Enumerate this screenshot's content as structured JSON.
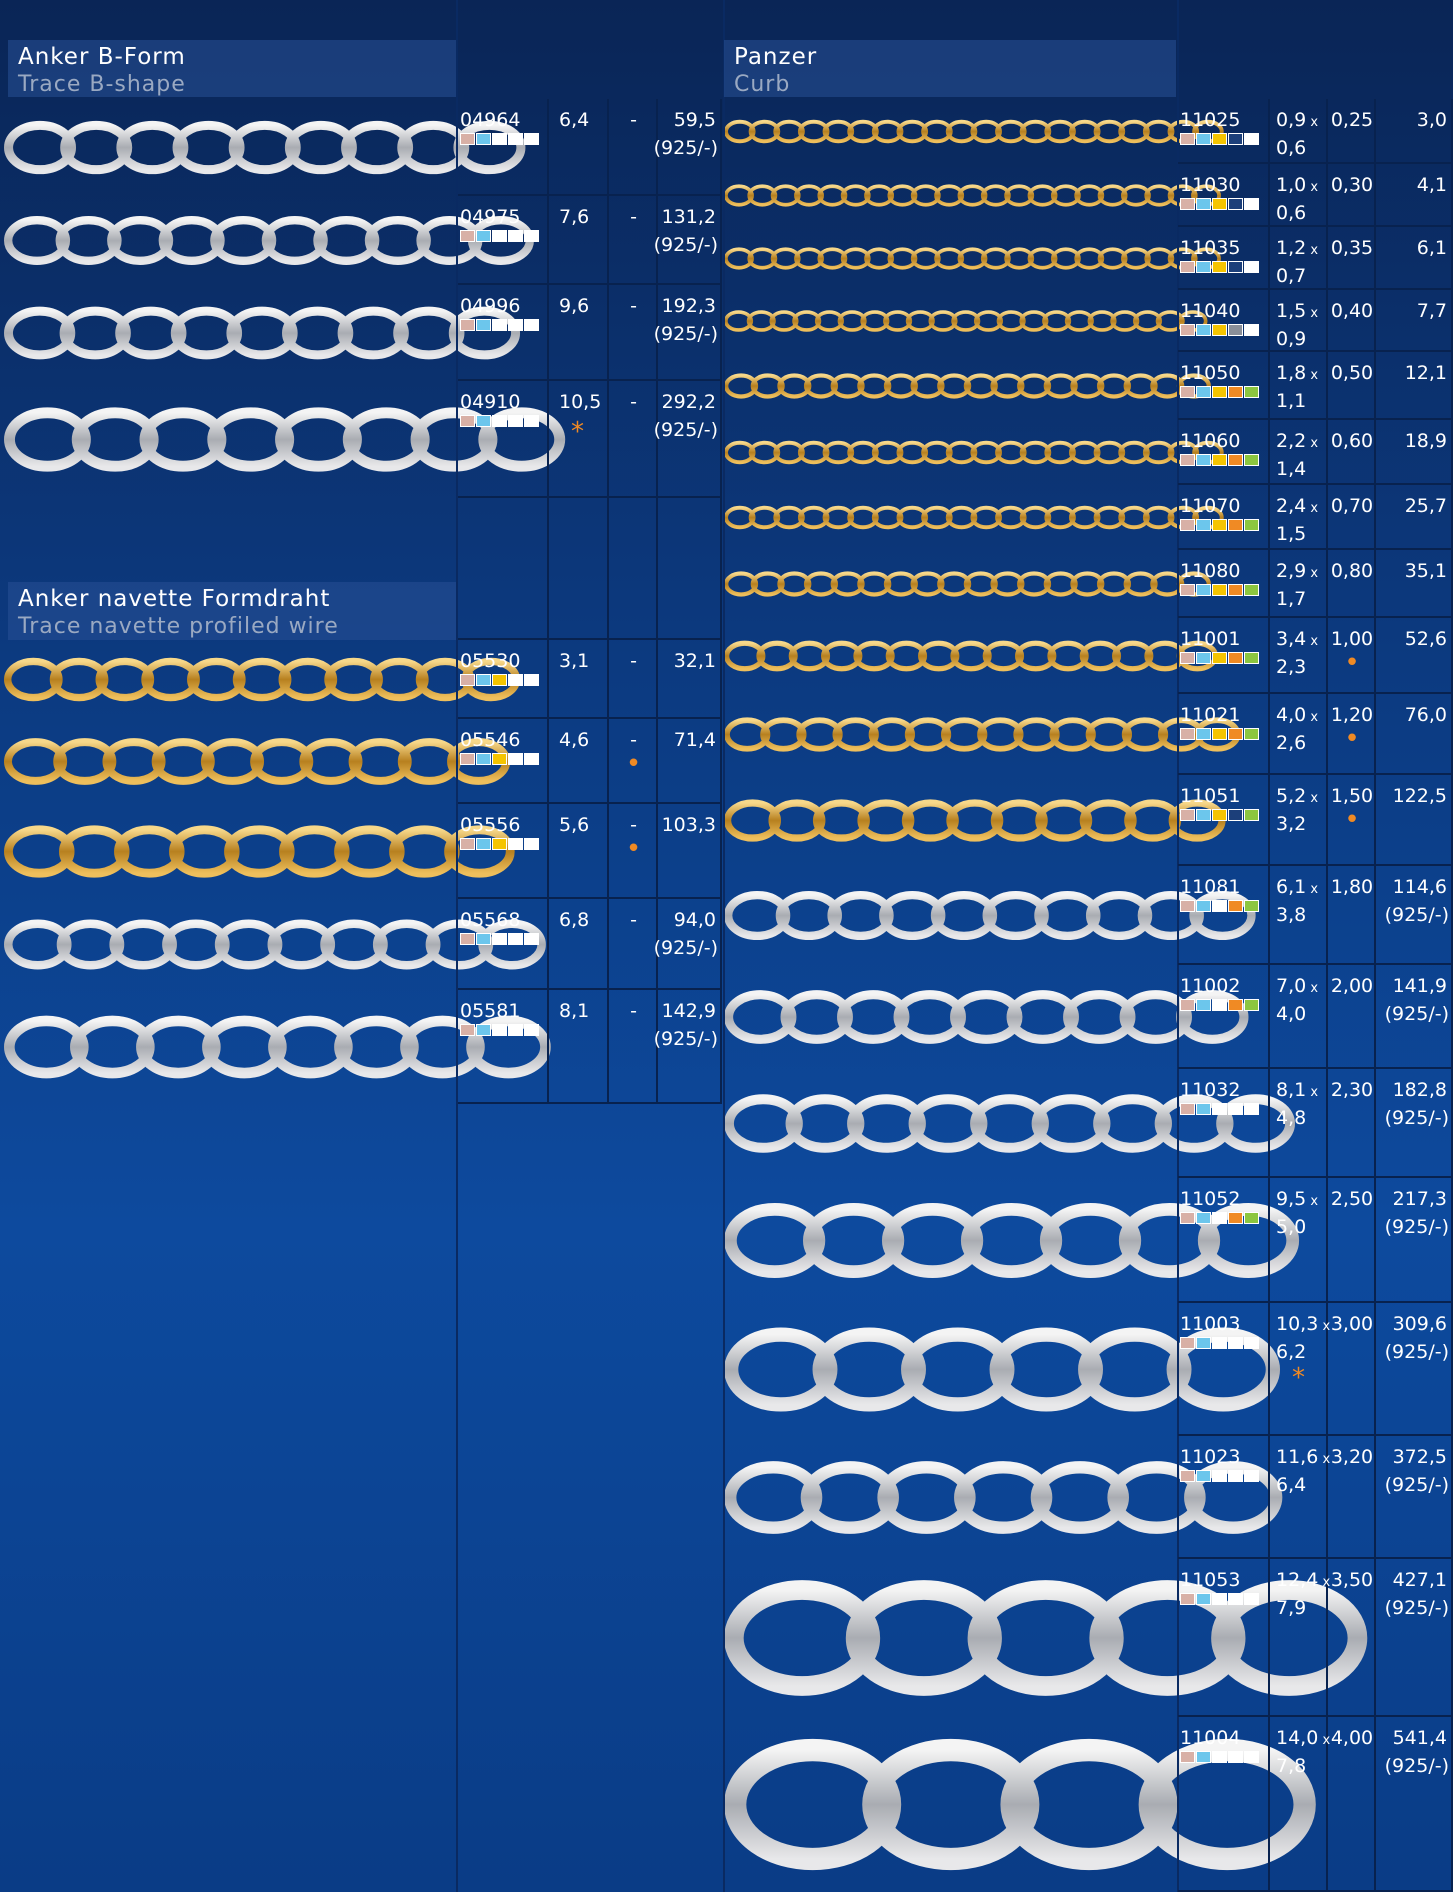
{
  "sections": [
    {
      "title": "Anker B-Form",
      "subtitle": "Trace B-shape",
      "rows": [
        {
          "code": "04964",
          "size": "6,4",
          "thickness": "-",
          "weight": "59,5",
          "alloy": "(925/-)",
          "swatches": [
            "#d8b0a6",
            "#6cc6ec",
            "#ffffff",
            "#ffffff",
            "#ffffff"
          ]
        },
        {
          "code": "04975",
          "size": "7,6",
          "thickness": "-",
          "weight": "131,2",
          "alloy": "(925/-)",
          "swatches": [
            "#d8b0a6",
            "#6cc6ec",
            "#ffffff",
            "#ffffff",
            "#ffffff"
          ]
        },
        {
          "code": "04996",
          "size": "9,6",
          "thickness": "-",
          "weight": "192,3",
          "alloy": "(925/-)",
          "swatches": [
            "#d8b0a6",
            "#6cc6ec",
            "#ffffff",
            "#ffffff",
            "#ffffff"
          ]
        },
        {
          "code": "04910",
          "size": "10,5",
          "size_mark": "*",
          "thickness": "-",
          "weight": "292,2",
          "alloy": "(925/-)",
          "swatches": [
            "#d8b0a6",
            "#6cc6ec",
            "#ffffff",
            "#ffffff",
            "#ffffff"
          ]
        }
      ]
    },
    {
      "title": "Anker navette Formdraht",
      "subtitle": "Trace navette profiled wire",
      "rows": [
        {
          "code": "05530",
          "size": "3,1",
          "thickness": "-",
          "weight": "32,1",
          "swatches": [
            "#d8b0a6",
            "#6cc6ec",
            "#f5c400",
            "#ffffff",
            "#ffffff"
          ]
        },
        {
          "code": "05546",
          "size": "4,6",
          "thickness": "-",
          "thickness_mark": "•",
          "weight": "71,4",
          "swatches": [
            "#d8b0a6",
            "#6cc6ec",
            "#f5c400",
            "#ffffff",
            "#ffffff"
          ]
        },
        {
          "code": "05556",
          "size": "5,6",
          "thickness": "-",
          "thickness_mark": "•",
          "weight": "103,3",
          "swatches": [
            "#d8b0a6",
            "#6cc6ec",
            "#f5c400",
            "#ffffff",
            "#ffffff"
          ]
        },
        {
          "code": "05568",
          "size": "6,8",
          "thickness": "-",
          "weight": "94,0",
          "alloy": "(925/-)",
          "swatches": [
            "#d8b0a6",
            "#6cc6ec",
            "#ffffff",
            "#ffffff",
            "#ffffff"
          ]
        },
        {
          "code": "05581",
          "size": "8,1",
          "thickness": "-",
          "weight": "142,9",
          "alloy": "(925/-)",
          "swatches": [
            "#d8b0a6",
            "#6cc6ec",
            "#ffffff",
            "#ffffff",
            "#ffffff"
          ]
        }
      ]
    },
    {
      "title": "Panzer",
      "subtitle": "Curb",
      "times": "x",
      "rows": [
        {
          "code": "11025",
          "width": "0,9",
          "height": "0,6",
          "thickness": "0,25",
          "weight": "3,0",
          "swatches": [
            "#d8b0a6",
            "#6cc6ec",
            "#f5c400",
            "#1c3f7a",
            "#ffffff"
          ]
        },
        {
          "code": "11030",
          "width": "1,0",
          "height": "0,6",
          "thickness": "0,30",
          "weight": "4,1",
          "swatches": [
            "#d8b0a6",
            "#6cc6ec",
            "#f5c400",
            "#1c3f7a",
            "#ffffff"
          ]
        },
        {
          "code": "11035",
          "width": "1,2",
          "height": "0,7",
          "thickness": "0,35",
          "weight": "6,1",
          "swatches": [
            "#d8b0a6",
            "#6cc6ec",
            "#f5c400",
            "#1c3f7a",
            "#ffffff"
          ]
        },
        {
          "code": "11040",
          "width": "1,5",
          "height": "0,9",
          "thickness": "0,40",
          "weight": "7,7",
          "swatches": [
            "#d8b0a6",
            "#6cc6ec",
            "#f5c400",
            "#8a8f99",
            "#ffffff"
          ]
        },
        {
          "code": "11050",
          "width": "1,8",
          "height": "1,1",
          "thickness": "0,50",
          "weight": "12,1",
          "swatches": [
            "#d8b0a6",
            "#6cc6ec",
            "#f5c400",
            "#f08a24",
            "#8cc63f"
          ]
        },
        {
          "code": "11060",
          "width": "2,2",
          "height": "1,4",
          "thickness": "0,60",
          "weight": "18,9",
          "swatches": [
            "#d8b0a6",
            "#6cc6ec",
            "#f5c400",
            "#f08a24",
            "#8cc63f"
          ]
        },
        {
          "code": "11070",
          "width": "2,4",
          "height": "1,5",
          "thickness": "0,70",
          "weight": "25,7",
          "swatches": [
            "#d8b0a6",
            "#6cc6ec",
            "#f5c400",
            "#f08a24",
            "#8cc63f"
          ]
        },
        {
          "code": "11080",
          "width": "2,9",
          "height": "1,7",
          "thickness": "0,80",
          "weight": "35,1",
          "swatches": [
            "#d8b0a6",
            "#6cc6ec",
            "#f5c400",
            "#f08a24",
            "#8cc63f"
          ]
        },
        {
          "code": "11001",
          "width": "3,4",
          "height": "2,3",
          "thickness": "1,00",
          "thickness_mark": "•",
          "weight": "52,6",
          "swatches": [
            "#d8b0a6",
            "#6cc6ec",
            "#f5c400",
            "#f08a24",
            "#8cc63f"
          ]
        },
        {
          "code": "11021",
          "width": "4,0",
          "height": "2,6",
          "thickness": "1,20",
          "thickness_mark": "•",
          "weight": "76,0",
          "swatches": [
            "#d8b0a6",
            "#6cc6ec",
            "#f5c400",
            "#f08a24",
            "#8cc63f"
          ]
        },
        {
          "code": "11051",
          "width": "5,2",
          "height": "3,2",
          "thickness": "1,50",
          "thickness_mark": "•",
          "weight": "122,5",
          "swatches": [
            "#d8b0a6",
            "#6cc6ec",
            "#f5c400",
            "#1c3f7a",
            "#8cc63f"
          ]
        },
        {
          "code": "11081",
          "width": "6,1",
          "height": "3,8",
          "thickness": "1,80",
          "weight": "114,6",
          "alloy": "(925/-)",
          "swatches": [
            "#d8b0a6",
            "#6cc6ec",
            "#ffffff",
            "#f08a24",
            "#8cc63f"
          ]
        },
        {
          "code": "11002",
          "width": "7,0",
          "height": "4,0",
          "thickness": "2,00",
          "weight": "141,9",
          "alloy": "(925/-)",
          "swatches": [
            "#d8b0a6",
            "#6cc6ec",
            "#ffffff",
            "#f08a24",
            "#8cc63f"
          ]
        },
        {
          "code": "11032",
          "width": "8,1",
          "height": "4,8",
          "thickness": "2,30",
          "weight": "182,8",
          "alloy": "(925/-)",
          "swatches": [
            "#d8b0a6",
            "#6cc6ec",
            "#ffffff",
            "#ffffff",
            "#ffffff"
          ]
        },
        {
          "code": "11052",
          "width": "9,5",
          "height": "5,0",
          "thickness": "2,50",
          "weight": "217,3",
          "alloy": "(925/-)",
          "swatches": [
            "#d8b0a6",
            "#6cc6ec",
            "#ffffff",
            "#f08a24",
            "#8cc63f"
          ]
        },
        {
          "code": "11003",
          "width": "10,3",
          "height": "6,2",
          "size_mark": "*",
          "thickness": "3,00",
          "weight": "309,6",
          "alloy": "(925/-)",
          "swatches": [
            "#d8b0a6",
            "#6cc6ec",
            "#ffffff",
            "#ffffff",
            "#ffffff"
          ]
        },
        {
          "code": "11023",
          "width": "11,6",
          "height": "6,4",
          "thickness": "3,20",
          "weight": "372,5",
          "alloy": "(925/-)",
          "swatches": [
            "#d8b0a6",
            "#6cc6ec",
            "#ffffff",
            "#ffffff",
            "#ffffff"
          ]
        },
        {
          "code": "11053",
          "width": "12,4",
          "height": "7,9",
          "thickness": "3,50",
          "weight": "427,1",
          "alloy": "(925/-)",
          "swatches": [
            "#d8b0a6",
            "#6cc6ec",
            "#ffffff",
            "#ffffff",
            "#ffffff"
          ]
        },
        {
          "code": "11004",
          "width": "14,0",
          "height": "7,8",
          "thickness": "4,00",
          "weight": "541,4",
          "alloy": "(925/-)",
          "swatches": [
            "#d8b0a6",
            "#6cc6ec",
            "#ffffff",
            "#ffffff",
            "#ffffff"
          ]
        }
      ]
    }
  ]
}
